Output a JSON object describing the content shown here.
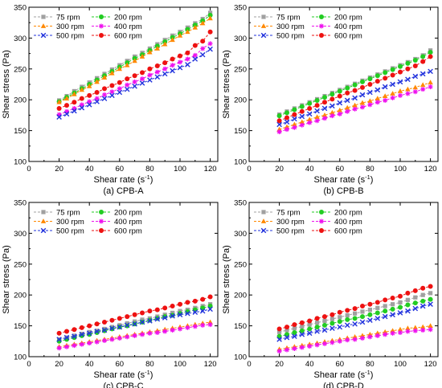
{
  "chart_data": [
    {
      "type": "line",
      "caption": "(a) CPB-A",
      "xlabel": "Shear rate (s",
      "xlabel_sup": "-1",
      "xlabel_end": ")",
      "ylabel": "Shear stress (Pa)",
      "xlim": [
        0,
        125
      ],
      "ylim": [
        100,
        350
      ],
      "xticks": [
        0,
        20,
        40,
        60,
        80,
        100,
        120
      ],
      "yticks": [
        100,
        150,
        200,
        250,
        300,
        350
      ],
      "legend": "top-left",
      "x": [
        20,
        25,
        30,
        35,
        40,
        45,
        50,
        55,
        60,
        65,
        70,
        75,
        80,
        85,
        90,
        95,
        100,
        105,
        110,
        115,
        120
      ],
      "series": [
        {
          "name": "75   rpm",
          "color": "#A0A0A0",
          "marker": "square",
          "values": [
            199,
            206,
            214,
            221,
            228,
            235,
            242,
            249,
            256,
            263,
            270,
            276,
            283,
            290,
            297,
            304,
            310,
            317,
            324,
            331,
            341
          ]
        },
        {
          "name": "200 rpm",
          "color": "#22CC22",
          "marker": "circle",
          "values": [
            197,
            204,
            211,
            218,
            225,
            232,
            239,
            246,
            253,
            260,
            267,
            273,
            280,
            287,
            294,
            301,
            307,
            314,
            321,
            328,
            337
          ]
        },
        {
          "name": "300 rpm",
          "color": "#FF8800",
          "marker": "triangle",
          "values": [
            196,
            202,
            209,
            216,
            222,
            229,
            236,
            243,
            250,
            256,
            263,
            270,
            277,
            283,
            290,
            297,
            304,
            310,
            317,
            324,
            332
          ]
        },
        {
          "name": "400 rpm",
          "color": "#EE11EE",
          "marker": "star",
          "values": [
            176,
            181,
            186,
            192,
            197,
            202,
            208,
            213,
            218,
            224,
            229,
            234,
            240,
            245,
            250,
            256,
            261,
            266,
            272,
            283,
            291
          ]
        },
        {
          "name": "500 rpm",
          "color": "#2233DD",
          "marker": "x",
          "values": [
            172,
            177,
            182,
            187,
            192,
            197,
            202,
            207,
            212,
            217,
            222,
            227,
            232,
            237,
            242,
            247,
            252,
            257,
            266,
            273,
            282
          ]
        },
        {
          "name": "600 rpm",
          "color": "#EE1111",
          "marker": "circle",
          "values": [
            186,
            191,
            196,
            202,
            207,
            212,
            218,
            223,
            228,
            234,
            239,
            244,
            250,
            255,
            260,
            266,
            271,
            276,
            288,
            295,
            310
          ]
        }
      ]
    },
    {
      "type": "line",
      "caption": "(b) CPB-B",
      "xlabel": "Shear rate (s",
      "xlabel_sup": "-1",
      "xlabel_end": ")",
      "ylabel": "Shear stress (Pa)",
      "xlim": [
        0,
        125
      ],
      "ylim": [
        100,
        350
      ],
      "xticks": [
        0,
        20,
        40,
        60,
        80,
        100,
        120
      ],
      "yticks": [
        100,
        150,
        200,
        250,
        300,
        350
      ],
      "legend": "top-left",
      "x": [
        20,
        25,
        30,
        35,
        40,
        45,
        50,
        55,
        60,
        65,
        70,
        75,
        80,
        85,
        90,
        95,
        100,
        105,
        110,
        115,
        120
      ],
      "series": [
        {
          "name": "75   rpm",
          "color": "#A0A0A0",
          "marker": "square",
          "values": [
            176,
            181,
            186,
            191,
            196,
            201,
            206,
            211,
            216,
            221,
            226,
            231,
            236,
            241,
            246,
            251,
            256,
            261,
            266,
            272,
            280
          ]
        },
        {
          "name": "200 rpm",
          "color": "#22CC22",
          "marker": "circle",
          "values": [
            174,
            179,
            184,
            189,
            194,
            199,
            204,
            209,
            214,
            219,
            224,
            229,
            234,
            239,
            244,
            249,
            254,
            259,
            264,
            270,
            277
          ]
        },
        {
          "name": "300 rpm",
          "color": "#FF8800",
          "marker": "triangle",
          "values": [
            152,
            156,
            160,
            164,
            168,
            172,
            175,
            179,
            183,
            187,
            191,
            195,
            198,
            202,
            206,
            210,
            214,
            217,
            220,
            224,
            228
          ]
        },
        {
          "name": "400 rpm",
          "color": "#EE11EE",
          "marker": "star",
          "values": [
            148,
            152,
            155,
            159,
            163,
            166,
            170,
            174,
            177,
            181,
            185,
            188,
            192,
            196,
            199,
            203,
            207,
            210,
            213,
            217,
            221
          ]
        },
        {
          "name": "500 rpm",
          "color": "#2233DD",
          "marker": "x",
          "values": [
            160,
            164,
            169,
            173,
            177,
            182,
            186,
            190,
            195,
            199,
            203,
            208,
            212,
            216,
            221,
            225,
            229,
            233,
            238,
            242,
            246
          ]
        },
        {
          "name": "600 rpm",
          "color": "#EE1111",
          "marker": "circle",
          "values": [
            166,
            171,
            176,
            181,
            186,
            191,
            196,
            201,
            206,
            211,
            215,
            220,
            225,
            230,
            235,
            240,
            245,
            250,
            255,
            262,
            270
          ]
        }
      ]
    },
    {
      "type": "line",
      "caption": "(c) CPB-C",
      "xlabel": "Shear rate (s",
      "xlabel_sup": "-1",
      "xlabel_end": ")",
      "ylabel": "Shear stress (Pa)",
      "xlim": [
        0,
        125
      ],
      "ylim": [
        100,
        350
      ],
      "xticks": [
        0,
        20,
        40,
        60,
        80,
        100,
        120
      ],
      "yticks": [
        100,
        150,
        200,
        250,
        300,
        350
      ],
      "legend": "top-left",
      "x": [
        20,
        25,
        30,
        35,
        40,
        45,
        50,
        55,
        60,
        65,
        70,
        75,
        80,
        85,
        90,
        95,
        100,
        105,
        110,
        115,
        120
      ],
      "series": [
        {
          "name": "75   rpm",
          "color": "#A0A0A0",
          "marker": "square",
          "values": [
            128,
            131,
            134,
            137,
            140,
            142,
            145,
            148,
            151,
            154,
            157,
            160,
            162,
            165,
            168,
            171,
            174,
            176,
            179,
            182,
            185
          ]
        },
        {
          "name": "200 rpm",
          "color": "#22CC22",
          "marker": "circle",
          "values": [
            125,
            128,
            131,
            134,
            136,
            139,
            142,
            145,
            148,
            150,
            153,
            156,
            159,
            162,
            165,
            167,
            170,
            173,
            176,
            179,
            182
          ]
        },
        {
          "name": "300 rpm",
          "color": "#FF8800",
          "marker": "triangle",
          "values": [
            116,
            118,
            120,
            122,
            124,
            126,
            128,
            130,
            132,
            134,
            136,
            138,
            140,
            142,
            144,
            146,
            148,
            150,
            152,
            154,
            156
          ]
        },
        {
          "name": "400 rpm",
          "color": "#EE11EE",
          "marker": "star",
          "values": [
            114,
            116,
            118,
            120,
            122,
            124,
            126,
            128,
            130,
            132,
            134,
            136,
            138,
            139,
            141,
            143,
            145,
            147,
            149,
            151,
            152
          ]
        },
        {
          "name": "500 rpm",
          "color": "#2233DD",
          "marker": "x",
          "values": [
            128,
            131,
            133,
            136,
            138,
            141,
            143,
            146,
            148,
            151,
            153,
            156,
            158,
            161,
            163,
            166,
            168,
            170,
            172,
            174,
            177
          ]
        },
        {
          "name": "600 rpm",
          "color": "#EE1111",
          "marker": "circle",
          "values": [
            138,
            141,
            144,
            147,
            150,
            153,
            156,
            159,
            162,
            165,
            168,
            171,
            174,
            176,
            179,
            182,
            185,
            188,
            190,
            193,
            197
          ]
        }
      ]
    },
    {
      "type": "line",
      "caption": "(d) CPB-D",
      "xlabel": "Shear rate (s",
      "xlabel_sup": "-1",
      "xlabel_end": ")",
      "ylabel": "Shear stress (Pa)",
      "xlim": [
        0,
        125
      ],
      "ylim": [
        100,
        350
      ],
      "xticks": [
        0,
        20,
        40,
        60,
        80,
        100,
        120
      ],
      "yticks": [
        100,
        150,
        200,
        250,
        300,
        350
      ],
      "legend": "top-left",
      "x": [
        20,
        25,
        30,
        35,
        40,
        45,
        50,
        55,
        60,
        65,
        70,
        75,
        80,
        85,
        90,
        95,
        100,
        105,
        110,
        115,
        120
      ],
      "series": [
        {
          "name": "75   rpm",
          "color": "#A0A0A0",
          "marker": "square",
          "values": [
            140,
            143,
            146,
            149,
            152,
            155,
            158,
            161,
            164,
            167,
            170,
            173,
            176,
            179,
            182,
            185,
            188,
            192,
            196,
            200,
            203
          ]
        },
        {
          "name": "200 rpm",
          "color": "#22CC22",
          "marker": "circle",
          "values": [
            133,
            136,
            139,
            142,
            145,
            148,
            151,
            154,
            157,
            160,
            162,
            165,
            168,
            171,
            174,
            177,
            180,
            184,
            187,
            190,
            193
          ]
        },
        {
          "name": "300 rpm",
          "color": "#FF8800",
          "marker": "triangle",
          "values": [
            112,
            114,
            116,
            118,
            120,
            122,
            124,
            126,
            128,
            130,
            132,
            134,
            136,
            138,
            140,
            142,
            144,
            146,
            147,
            148,
            150
          ]
        },
        {
          "name": "400 rpm",
          "color": "#EE11EE",
          "marker": "star",
          "values": [
            109,
            111,
            113,
            115,
            117,
            119,
            121,
            123,
            125,
            127,
            128,
            130,
            132,
            134,
            136,
            138,
            139,
            141,
            142,
            143,
            144
          ]
        },
        {
          "name": "500 rpm",
          "color": "#2233DD",
          "marker": "x",
          "values": [
            128,
            131,
            133,
            136,
            138,
            141,
            143,
            146,
            148,
            151,
            153,
            156,
            159,
            162,
            165,
            168,
            171,
            174,
            178,
            182,
            185
          ]
        },
        {
          "name": "600 rpm",
          "color": "#EE1111",
          "marker": "circle",
          "values": [
            145,
            148,
            152,
            155,
            158,
            162,
            165,
            168,
            172,
            175,
            178,
            182,
            185,
            188,
            192,
            195,
            198,
            203,
            207,
            211,
            214
          ]
        }
      ]
    }
  ]
}
